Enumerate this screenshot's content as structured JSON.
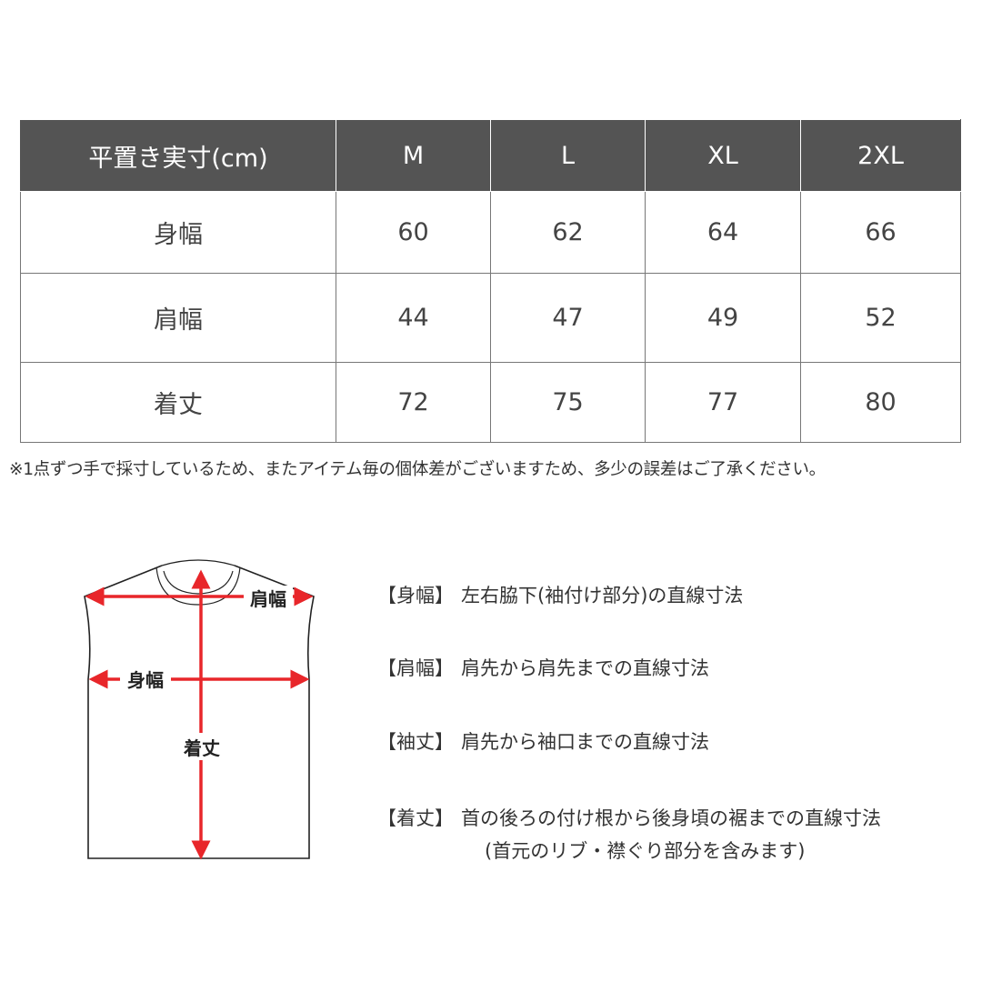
{
  "table": {
    "headers": [
      "平置き実寸(cm)",
      "M",
      "L",
      "XL",
      "2XL"
    ],
    "rows": [
      {
        "label": "身幅",
        "values": [
          "60",
          "62",
          "64",
          "66"
        ]
      },
      {
        "label": "肩幅",
        "values": [
          "44",
          "47",
          "49",
          "52"
        ]
      },
      {
        "label": "着丈",
        "values": [
          "72",
          "75",
          "77",
          "80"
        ]
      }
    ],
    "header_color": "#545454"
  },
  "note": "※1点ずつ手で採寸しているため、またアイテム毎の個体差がございますため、多少の誤差はご了承ください。",
  "diagram": {
    "labels": {
      "shoulder": "肩幅",
      "body_width": "身幅",
      "length": "着丈"
    },
    "arrow_color": "#e8262a"
  },
  "legend": [
    {
      "key": "【身幅】",
      "text": "左右脇下(袖付け部分)の直線寸法"
    },
    {
      "key": "【肩幅】",
      "text": "肩先から肩先までの直線寸法"
    },
    {
      "key": "【袖丈】",
      "text": "肩先から袖口までの直線寸法"
    },
    {
      "key": "【着丈】",
      "text": "首の後ろの付け根から後身頃の裾までの直線寸法",
      "text2": "(首元のリブ・襟ぐり部分を含みます)"
    }
  ]
}
